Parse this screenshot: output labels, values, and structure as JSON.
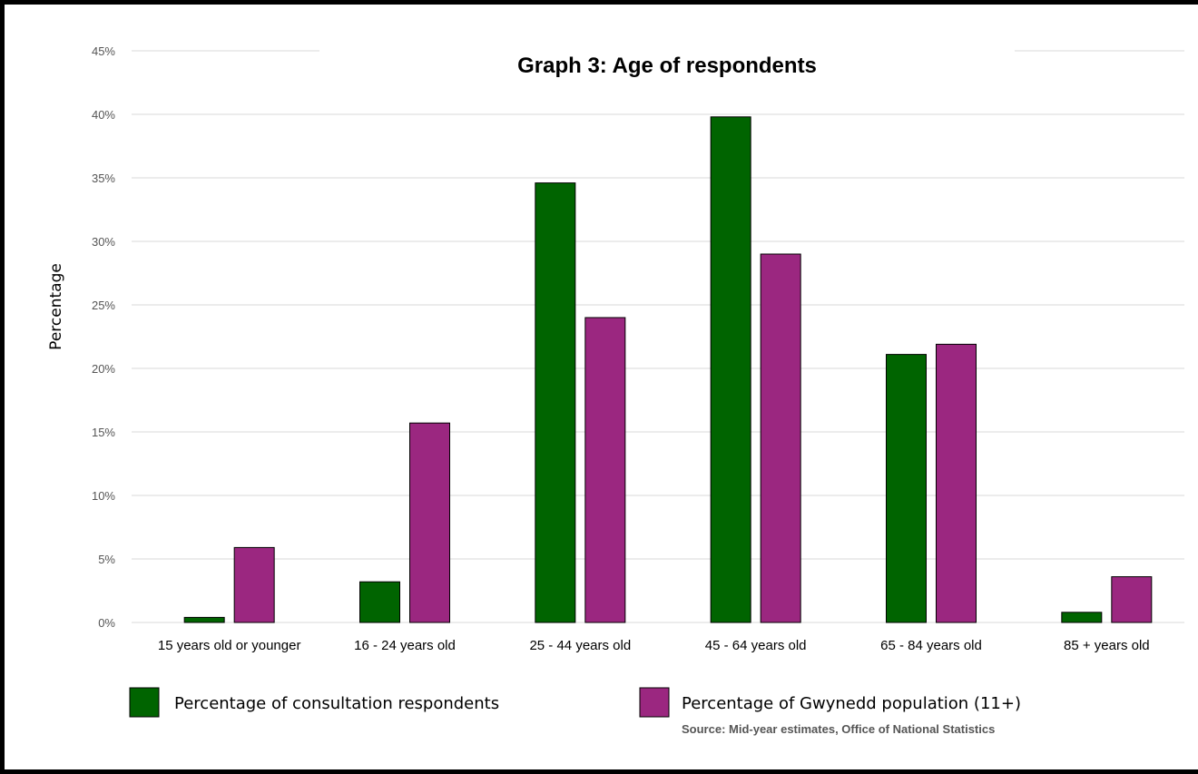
{
  "colors": {
    "respondents": "#006400",
    "population": "#9B2780",
    "grid": "#d9d9d9",
    "bar_stroke": "#000000"
  },
  "chart_data": {
    "type": "bar",
    "title": "Graph 3: Age of respondents",
    "xlabel": "",
    "ylabel": "Percentage",
    "ylim": [
      0,
      45
    ],
    "y_ticks": [
      "0%",
      "5%",
      "10%",
      "15%",
      "20%",
      "25%",
      "30%",
      "35%",
      "40%",
      "45%"
    ],
    "y_tick_values": [
      0,
      5,
      10,
      15,
      20,
      25,
      30,
      35,
      40,
      45
    ],
    "grid": true,
    "legend_position": "bottom",
    "categories": [
      "15 years old or younger",
      "16 - 24 years old",
      "25 - 44 years old",
      "45 - 64 years old",
      "65 - 84 years old",
      "85 + years old"
    ],
    "series": [
      {
        "name": "Percentage of consultation respondents",
        "values": [
          0.4,
          3.2,
          34.6,
          39.8,
          21.1,
          0.8
        ]
      },
      {
        "name": "Percentage of Gwynedd population (11+)",
        "values": [
          5.9,
          15.7,
          24.0,
          29.0,
          21.9,
          3.6
        ]
      }
    ],
    "source": "Source: Mid-year estimates, Office of National Statistics"
  }
}
